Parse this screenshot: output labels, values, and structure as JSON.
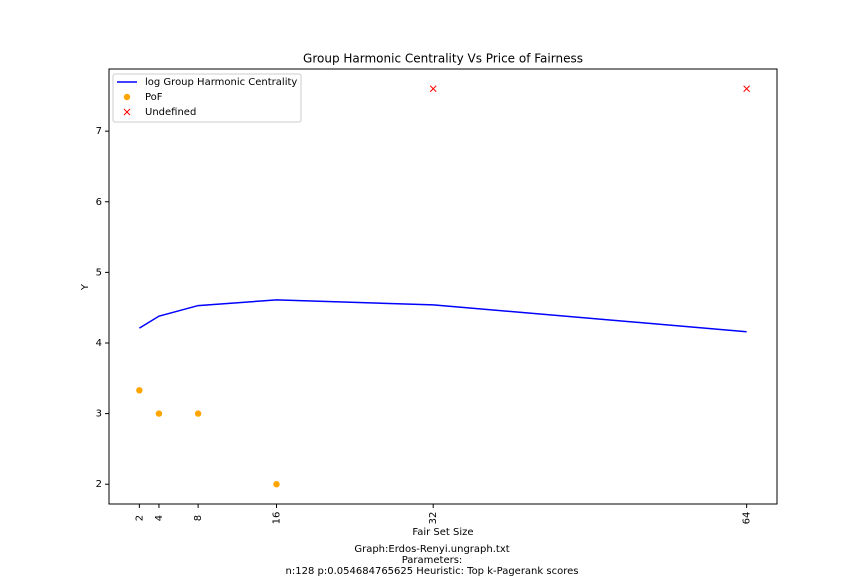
{
  "chart_data": {
    "type": "line",
    "title": "Group Harmonic Centrality Vs Price of Fairness",
    "xlabel": "Fair Set Size",
    "ylabel": "Y",
    "footer": [
      "Graph:Erdos-Renyi.ungraph.txt",
      "Parameters:",
      "n:128 p:0.054684765625  Heuristic: Top k-Pagerank scores"
    ],
    "series": [
      {
        "name": "log Group Harmonic Centrality",
        "color": "#0000ff",
        "marker": "line",
        "x": [
          2,
          4,
          8,
          16,
          32,
          64
        ],
        "values": [
          4.21,
          4.38,
          4.53,
          4.61,
          4.54,
          4.16
        ]
      },
      {
        "name": "PoF",
        "color": "#ffa500",
        "marker": "circle",
        "x": [
          2,
          4,
          8,
          16
        ],
        "values": [
          3.33,
          3.0,
          3.0,
          2.0
        ]
      },
      {
        "name": "Undefined",
        "color": "#ff0000",
        "marker": "x",
        "x": [
          32,
          64
        ],
        "values": [
          7.6,
          7.6
        ]
      }
    ],
    "xlim": [
      -1.1,
      67.1
    ],
    "xticks": [
      2,
      4,
      8,
      16,
      32,
      64
    ],
    "ylim": [
      1.72,
      7.88
    ],
    "yticks": [
      2,
      3,
      4,
      5,
      6,
      7
    ],
    "legend": "upper left"
  }
}
